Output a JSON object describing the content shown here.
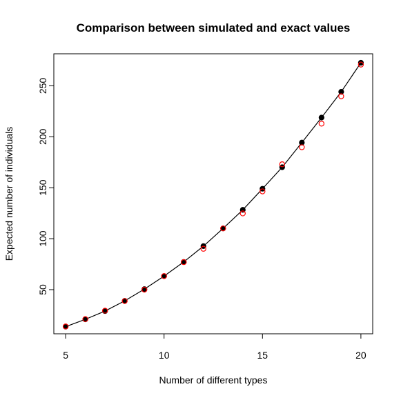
{
  "chart_data": {
    "type": "scatter",
    "title": "Comparison between simulated and exact values",
    "xlabel": "Number of different types",
    "ylabel": "Expected number of individuals",
    "xlim": [
      4.4,
      20.6
    ],
    "ylim": [
      6.7,
      281.4
    ],
    "xticks": [
      5,
      10,
      15,
      20
    ],
    "yticks": [
      50,
      100,
      150,
      200,
      250
    ],
    "grid": false,
    "series": [
      {
        "style": "line-with-filled-points",
        "color": "#000000",
        "x": [
          5,
          6,
          7,
          8,
          9,
          10,
          11,
          12,
          13,
          14,
          15,
          16,
          17,
          18,
          19,
          20
        ],
        "y": [
          13.7,
          20.9,
          29.0,
          39.0,
          50.5,
          63.3,
          77.2,
          92.7,
          110.1,
          128.3,
          149.0,
          170.1,
          194.3,
          218.8,
          244.1,
          272.6
        ]
      },
      {
        "style": "open-circles",
        "color": "#ff0000",
        "x": [
          5,
          6,
          7,
          8,
          9,
          10,
          11,
          12,
          13,
          14,
          15,
          16,
          17,
          18,
          19,
          20
        ],
        "y": [
          13.9,
          21.1,
          29.4,
          38.8,
          50.0,
          63.3,
          77.0,
          90.1,
          110.1,
          124.8,
          146.4,
          173.0,
          189.7,
          212.9,
          239.7,
          270.8
        ]
      }
    ]
  }
}
